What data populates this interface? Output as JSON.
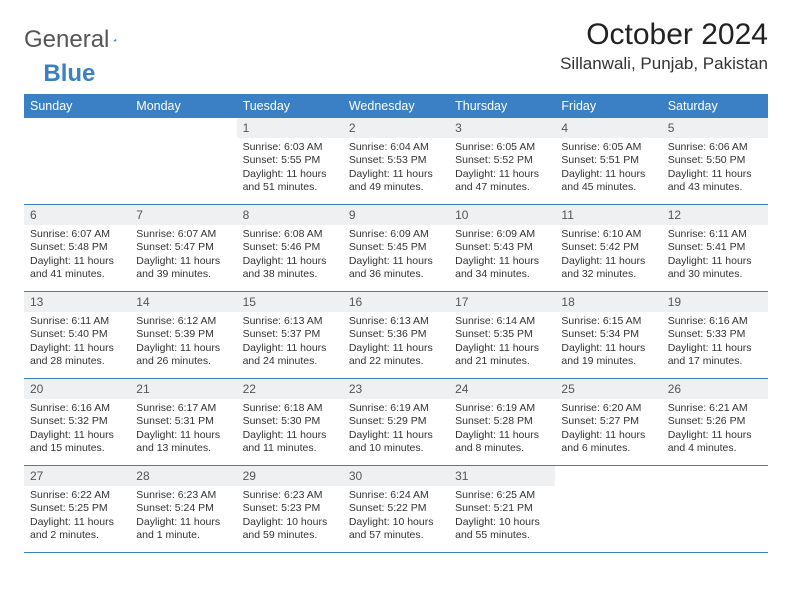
{
  "logo": {
    "text1": "General",
    "text2": "Blue"
  },
  "title": "October 2024",
  "location": "Sillanwali, Punjab, Pakistan",
  "colors": {
    "header_bg": "#3b7fc4",
    "header_fg": "#ffffff",
    "daynum_bg": "#eef0f2",
    "row_border": "#3b7fc4",
    "page_bg": "#ffffff"
  },
  "weekdays": [
    "Sunday",
    "Monday",
    "Tuesday",
    "Wednesday",
    "Thursday",
    "Friday",
    "Saturday"
  ],
  "weeks": [
    [
      null,
      null,
      {
        "n": "1",
        "sr": "6:03 AM",
        "ss": "5:55 PM",
        "dl": "11 hours and 51 minutes."
      },
      {
        "n": "2",
        "sr": "6:04 AM",
        "ss": "5:53 PM",
        "dl": "11 hours and 49 minutes."
      },
      {
        "n": "3",
        "sr": "6:05 AM",
        "ss": "5:52 PM",
        "dl": "11 hours and 47 minutes."
      },
      {
        "n": "4",
        "sr": "6:05 AM",
        "ss": "5:51 PM",
        "dl": "11 hours and 45 minutes."
      },
      {
        "n": "5",
        "sr": "6:06 AM",
        "ss": "5:50 PM",
        "dl": "11 hours and 43 minutes."
      }
    ],
    [
      {
        "n": "6",
        "sr": "6:07 AM",
        "ss": "5:48 PM",
        "dl": "11 hours and 41 minutes."
      },
      {
        "n": "7",
        "sr": "6:07 AM",
        "ss": "5:47 PM",
        "dl": "11 hours and 39 minutes."
      },
      {
        "n": "8",
        "sr": "6:08 AM",
        "ss": "5:46 PM",
        "dl": "11 hours and 38 minutes."
      },
      {
        "n": "9",
        "sr": "6:09 AM",
        "ss": "5:45 PM",
        "dl": "11 hours and 36 minutes."
      },
      {
        "n": "10",
        "sr": "6:09 AM",
        "ss": "5:43 PM",
        "dl": "11 hours and 34 minutes."
      },
      {
        "n": "11",
        "sr": "6:10 AM",
        "ss": "5:42 PM",
        "dl": "11 hours and 32 minutes."
      },
      {
        "n": "12",
        "sr": "6:11 AM",
        "ss": "5:41 PM",
        "dl": "11 hours and 30 minutes."
      }
    ],
    [
      {
        "n": "13",
        "sr": "6:11 AM",
        "ss": "5:40 PM",
        "dl": "11 hours and 28 minutes."
      },
      {
        "n": "14",
        "sr": "6:12 AM",
        "ss": "5:39 PM",
        "dl": "11 hours and 26 minutes."
      },
      {
        "n": "15",
        "sr": "6:13 AM",
        "ss": "5:37 PM",
        "dl": "11 hours and 24 minutes."
      },
      {
        "n": "16",
        "sr": "6:13 AM",
        "ss": "5:36 PM",
        "dl": "11 hours and 22 minutes."
      },
      {
        "n": "17",
        "sr": "6:14 AM",
        "ss": "5:35 PM",
        "dl": "11 hours and 21 minutes."
      },
      {
        "n": "18",
        "sr": "6:15 AM",
        "ss": "5:34 PM",
        "dl": "11 hours and 19 minutes."
      },
      {
        "n": "19",
        "sr": "6:16 AM",
        "ss": "5:33 PM",
        "dl": "11 hours and 17 minutes."
      }
    ],
    [
      {
        "n": "20",
        "sr": "6:16 AM",
        "ss": "5:32 PM",
        "dl": "11 hours and 15 minutes."
      },
      {
        "n": "21",
        "sr": "6:17 AM",
        "ss": "5:31 PM",
        "dl": "11 hours and 13 minutes."
      },
      {
        "n": "22",
        "sr": "6:18 AM",
        "ss": "5:30 PM",
        "dl": "11 hours and 11 minutes."
      },
      {
        "n": "23",
        "sr": "6:19 AM",
        "ss": "5:29 PM",
        "dl": "11 hours and 10 minutes."
      },
      {
        "n": "24",
        "sr": "6:19 AM",
        "ss": "5:28 PM",
        "dl": "11 hours and 8 minutes."
      },
      {
        "n": "25",
        "sr": "6:20 AM",
        "ss": "5:27 PM",
        "dl": "11 hours and 6 minutes."
      },
      {
        "n": "26",
        "sr": "6:21 AM",
        "ss": "5:26 PM",
        "dl": "11 hours and 4 minutes."
      }
    ],
    [
      {
        "n": "27",
        "sr": "6:22 AM",
        "ss": "5:25 PM",
        "dl": "11 hours and 2 minutes."
      },
      {
        "n": "28",
        "sr": "6:23 AM",
        "ss": "5:24 PM",
        "dl": "11 hours and 1 minute."
      },
      {
        "n": "29",
        "sr": "6:23 AM",
        "ss": "5:23 PM",
        "dl": "10 hours and 59 minutes."
      },
      {
        "n": "30",
        "sr": "6:24 AM",
        "ss": "5:22 PM",
        "dl": "10 hours and 57 minutes."
      },
      {
        "n": "31",
        "sr": "6:25 AM",
        "ss": "5:21 PM",
        "dl": "10 hours and 55 minutes."
      },
      null,
      null
    ]
  ],
  "labels": {
    "sunrise": "Sunrise:",
    "sunset": "Sunset:",
    "daylight": "Daylight:"
  }
}
